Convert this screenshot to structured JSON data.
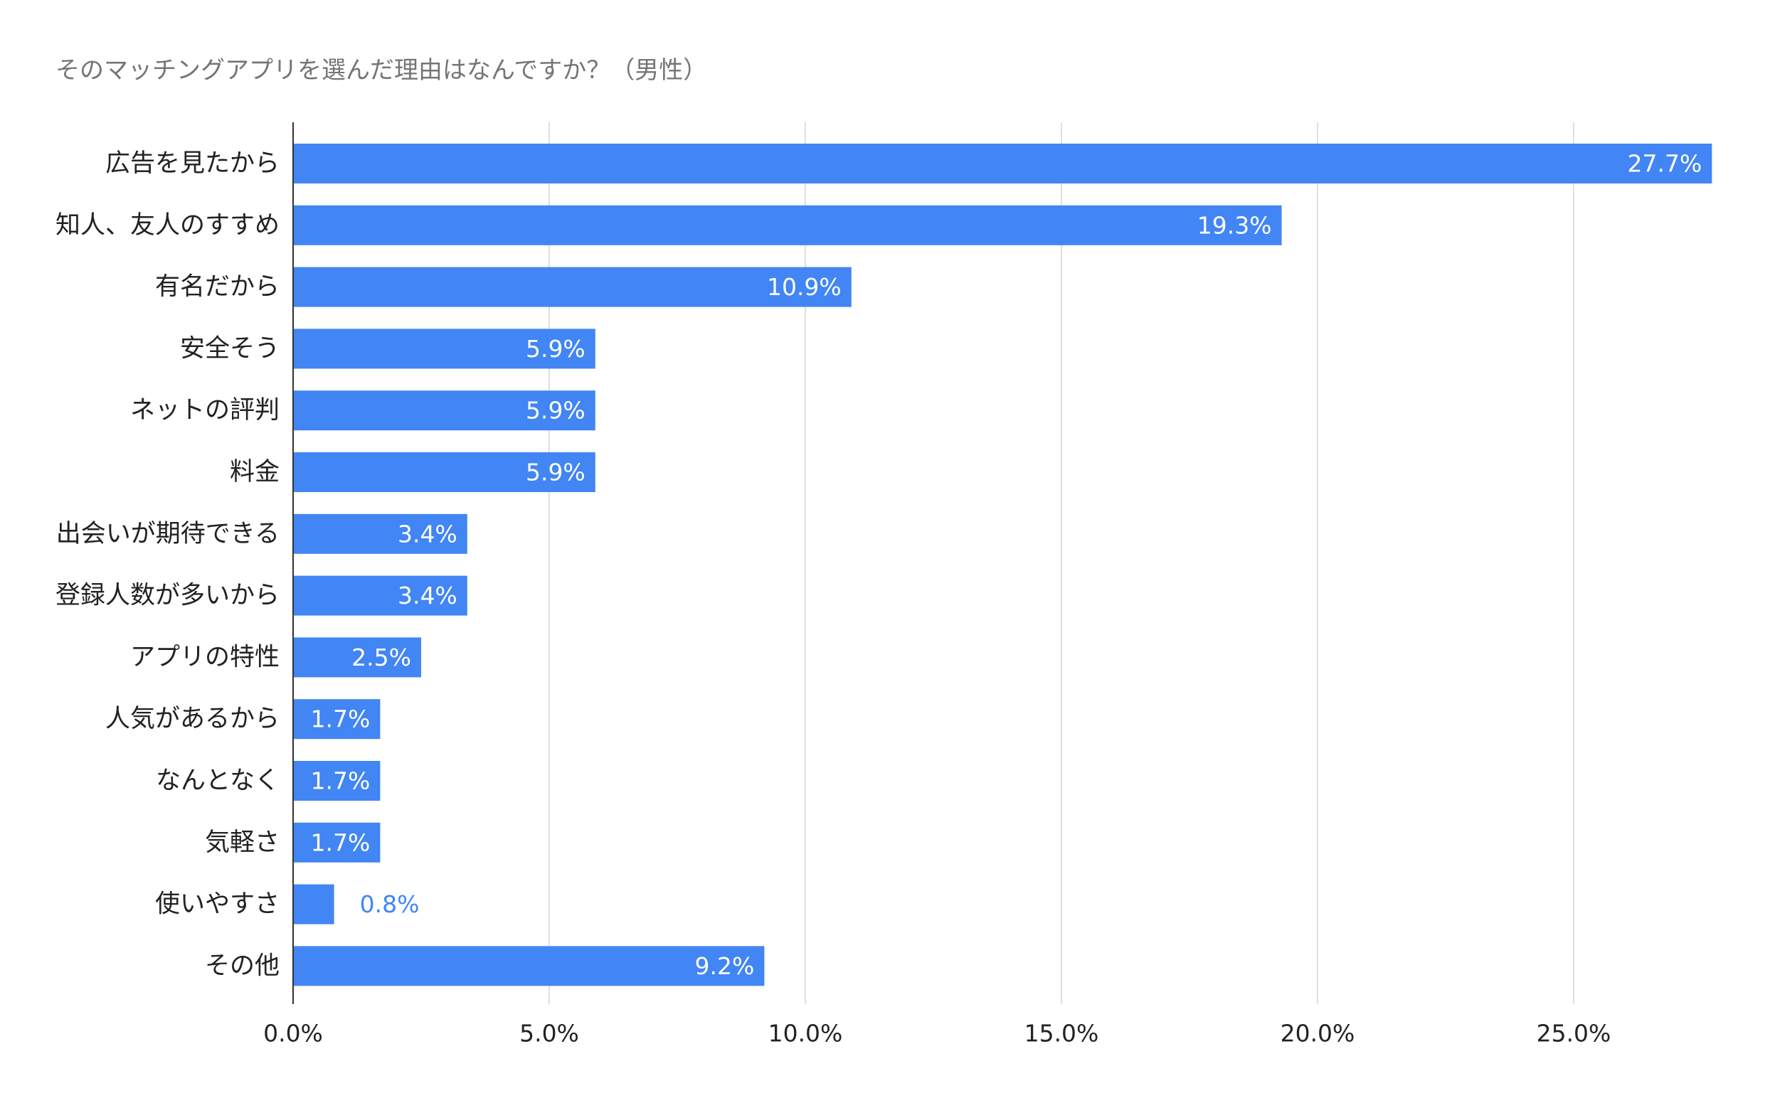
{
  "chart_data": {
    "type": "bar",
    "orientation": "horizontal",
    "title": "そのマッチングアプリを選んだ理由はなんですか？（男性）",
    "xlabel": "",
    "ylabel": "",
    "categories": [
      "広告を見たから",
      "知人、友人のすすめ",
      "有名だから",
      "安全そう",
      "ネットの評判",
      "料金",
      "出会いが期待できる",
      "登録人数が多いから",
      "アプリの特性",
      "人気があるから",
      "なんとなく",
      "気軽さ",
      "使いやすさ",
      "その他"
    ],
    "values": [
      27.7,
      19.3,
      10.9,
      5.9,
      5.9,
      5.9,
      3.4,
      3.4,
      2.5,
      1.7,
      1.7,
      1.7,
      0.8,
      9.2
    ],
    "data_labels": [
      "27.7%",
      "19.3%",
      "10.9%",
      "5.9%",
      "5.9%",
      "5.9%",
      "3.4%",
      "3.4%",
      "2.5%",
      "1.7%",
      "1.7%",
      "1.7%",
      "0.8%",
      "9.2%"
    ],
    "xlim": [
      0,
      28
    ],
    "xticks": [
      0,
      5,
      10,
      15,
      20,
      25
    ],
    "xtick_labels": [
      "0.0%",
      "5.0%",
      "10.0%",
      "15.0%",
      "20.0%",
      "25.0%"
    ],
    "grid": true,
    "legend": "none",
    "colors": {
      "bar": "#4285f4",
      "grid": "#e0e0e0",
      "axis": "#333333",
      "title": "#757575",
      "label": "#222222"
    }
  }
}
